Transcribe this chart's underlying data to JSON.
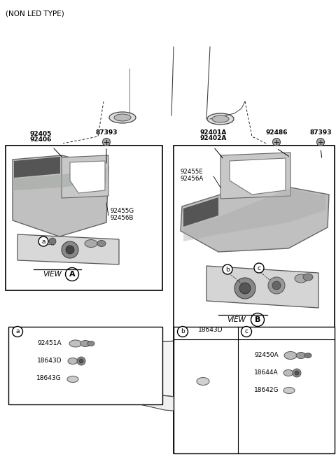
{
  "title": "(NON LED TYPE)",
  "bg_color": "#ffffff",
  "car_color": "#f0f0f0",
  "lamp_gray": "#b8b8b8",
  "lamp_dark": "#888888",
  "lamp_light": "#d8d8d8",
  "part_number_size": 6.5,
  "label_size": 7,
  "parts": {
    "left_upper": [
      "92405",
      "92406"
    ],
    "left_bolt": "87393",
    "right_upper": [
      "92401A",
      "92402A"
    ],
    "right_bolt1": "92486",
    "right_bolt2": "87393",
    "left_inner_label": [
      "92455G",
      "92456B"
    ],
    "right_inner_label": [
      "92455E",
      "92456A"
    ],
    "sub_a": [
      "92451A",
      "18643D",
      "18643G"
    ],
    "sub_b_label": "18643D",
    "sub_c": [
      "92450A",
      "18644A",
      "18642G"
    ]
  }
}
